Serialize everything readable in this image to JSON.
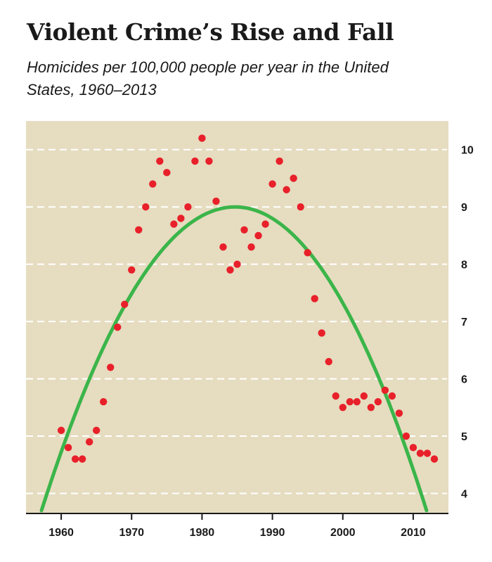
{
  "title": "Violent Crime’s Rise and Fall",
  "subtitle": "Homicides per 100,000 people per year in the United States, 1960–2013",
  "colors": {
    "plot_background": "#e6dcc0",
    "gridline": "#ffffff",
    "points": "#e8202a",
    "trend": "#3bb54a",
    "axis": "#1a1a1a"
  },
  "chart_data": {
    "type": "scatter",
    "title": "Violent Crime’s Rise and Fall",
    "subtitle": "Homicides per 100,000 people per year in the United States, 1960–2013",
    "xlabel": "",
    "ylabel": "",
    "xlim": [
      1955,
      2015
    ],
    "ylim": [
      3.65,
      10.5
    ],
    "grid": true,
    "y_axis_side": "right",
    "x_ticks": [
      1960,
      1970,
      1980,
      1990,
      2000,
      2010
    ],
    "y_ticks": [
      4,
      5,
      6,
      7,
      8,
      9,
      10
    ],
    "series": [
      {
        "kind": "points",
        "x": [
          1960,
          1961,
          1962,
          1963,
          1964,
          1965,
          1966,
          1967,
          1968,
          1969,
          1970,
          1971,
          1972,
          1973,
          1974,
          1975,
          1976,
          1977,
          1978,
          1979,
          1980,
          1981,
          1982,
          1983,
          1984,
          1985,
          1986,
          1987,
          1988,
          1989,
          1990,
          1991,
          1992,
          1993,
          1994,
          1995,
          1996,
          1997,
          1998,
          1999,
          2000,
          2001,
          2002,
          2003,
          2004,
          2005,
          2006,
          2007,
          2008,
          2009,
          2010,
          2011,
          2012,
          2013
        ],
        "y": [
          5.1,
          4.8,
          4.6,
          4.6,
          4.9,
          5.1,
          5.6,
          6.2,
          6.9,
          7.3,
          7.9,
          8.6,
          9.0,
          9.4,
          9.8,
          9.6,
          8.7,
          8.8,
          9.0,
          9.8,
          10.2,
          9.8,
          9.1,
          8.3,
          7.9,
          8.0,
          8.6,
          8.3,
          8.5,
          8.7,
          9.4,
          9.8,
          9.3,
          9.5,
          9.0,
          8.2,
          7.4,
          6.8,
          6.3,
          5.7,
          5.5,
          5.6,
          5.6,
          5.7,
          5.5,
          5.6,
          5.8,
          5.7,
          5.4,
          5.0,
          4.8,
          4.7,
          4.7,
          4.6
        ]
      },
      {
        "kind": "trend",
        "shape": "parabola",
        "vertex": [
          1984.7,
          9.0
        ],
        "ends": [
          [
            1957.2,
            3.7
          ],
          [
            2011.9,
            3.7
          ]
        ]
      }
    ]
  }
}
